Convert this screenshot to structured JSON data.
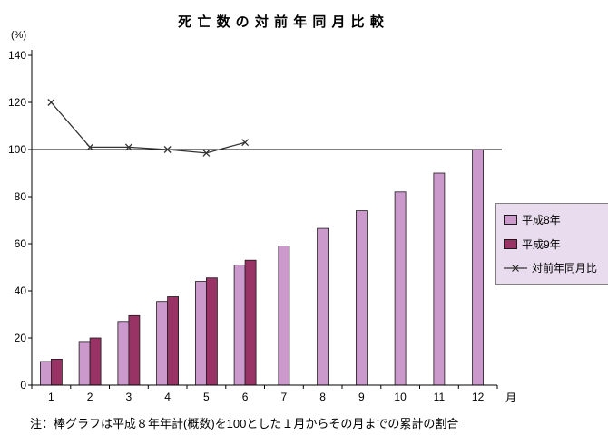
{
  "chart_data": {
    "type": "bar+line",
    "title": "死 亡 数 の 対 前 年 同 月 比 較",
    "y_unit": "(%)",
    "x_unit": "月",
    "note": "注：棒グラフは平成８年年計(概数)を100とした１月からその月までの累計の割合",
    "categories": [
      "1",
      "2",
      "3",
      "4",
      "5",
      "6",
      "7",
      "8",
      "9",
      "10",
      "11",
      "12"
    ],
    "series": [
      {
        "name": "平成8年",
        "type": "bar",
        "color": "#cc99cc",
        "values": [
          10,
          18.5,
          27,
          35.5,
          44,
          51,
          59,
          66.5,
          74,
          82,
          90,
          100
        ]
      },
      {
        "name": "平成9年",
        "type": "bar",
        "color": "#993366",
        "values": [
          11,
          20,
          29.5,
          37.5,
          45.5,
          53,
          null,
          null,
          null,
          null,
          null,
          null
        ]
      },
      {
        "name": "対前年同月比",
        "type": "line",
        "color": "#333333",
        "marker": "x",
        "values": [
          120,
          101,
          101,
          100,
          98.5,
          103,
          null,
          null,
          null,
          null,
          null,
          null
        ]
      }
    ],
    "ylim": [
      0,
      140
    ],
    "yticks": [
      0,
      20,
      40,
      60,
      80,
      100,
      120,
      140
    ],
    "reference_line": 100,
    "grid": false,
    "legend_position": "right"
  }
}
